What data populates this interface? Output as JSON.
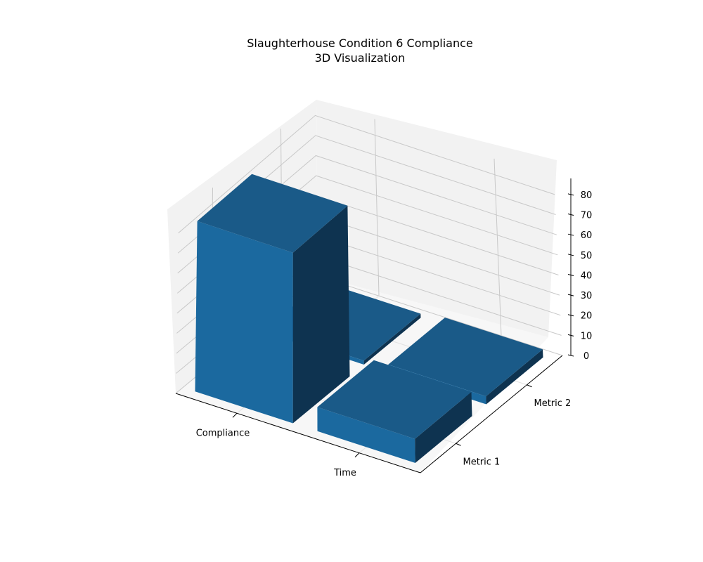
{
  "title": "Slaughterhouse Condition 6 Compliance",
  "subtitle": "3D Visualization",
  "chart_data": {
    "type": "bar3d",
    "x_categories": [
      "Compliance",
      "Time"
    ],
    "y_categories": [
      "Metric 1",
      "Metric 2"
    ],
    "z_ticks": [
      0,
      10,
      20,
      30,
      40,
      50,
      60,
      70,
      80
    ],
    "zlim": [
      0,
      88
    ],
    "bars": [
      {
        "x": "Compliance",
        "y": "Metric 1",
        "value": 85
      },
      {
        "x": "Compliance",
        "y": "Metric 2",
        "value": 2
      },
      {
        "x": "Time",
        "y": "Metric 1",
        "value": 12
      },
      {
        "x": "Time",
        "y": "Metric 2",
        "value": 4
      }
    ],
    "colors": {
      "bar_side": "#1b699f",
      "bar_top": "#1a5a88",
      "bar_right": "#0e3350",
      "pane": "#f2f2f2",
      "pane_floor": "#f7f7f7",
      "grid": "#c8c8c8"
    }
  }
}
